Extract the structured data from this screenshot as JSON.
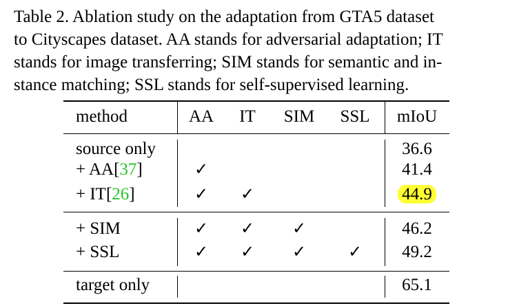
{
  "caption": {
    "lines": [
      "Table 2. Ablation study on the adaptation from GTA5 dataset",
      "to Cityscapes dataset.  AA stands for adversarial adaptation; IT",
      "stands for image transferring; SIM stands for semantic and in-",
      "stance matching; SSL stands for self-supervised learning."
    ]
  },
  "table": {
    "headers": [
      "method",
      "AA",
      "IT",
      "SIM",
      "SSL",
      "mIoU"
    ],
    "rows": [
      {
        "method": "source only",
        "ref": "",
        "checks": [
          false,
          false,
          false,
          false
        ],
        "miou": "36.6",
        "highlight": false
      },
      {
        "method": "+ AA[",
        "ref": "37",
        "checks": [
          true,
          false,
          false,
          false
        ],
        "miou": "41.4",
        "highlight": false
      },
      {
        "method": "+ IT[",
        "ref": "26",
        "checks": [
          true,
          true,
          false,
          false
        ],
        "miou": "44.9",
        "highlight": true
      },
      {
        "method": "+ SIM",
        "ref": "",
        "checks": [
          true,
          true,
          true,
          false
        ],
        "miou": "46.2",
        "highlight": false
      },
      {
        "method": "+ SSL",
        "ref": "",
        "checks": [
          true,
          true,
          true,
          true
        ],
        "miou": "49.2",
        "highlight": false
      },
      {
        "method": "target only",
        "ref": "",
        "checks": [
          false,
          false,
          false,
          false
        ],
        "miou": "65.1",
        "highlight": false
      }
    ],
    "check_symbol": "✓",
    "close_bracket": "]"
  },
  "colors": {
    "ref_link": "#27c427",
    "highlight": "#ffff33"
  }
}
